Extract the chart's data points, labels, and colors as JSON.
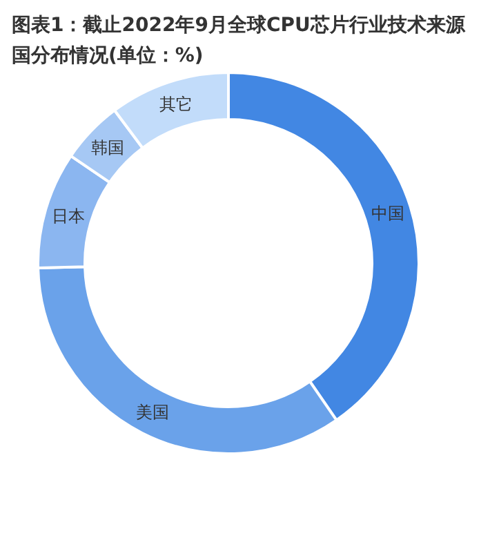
{
  "chart_data": {
    "type": "donut",
    "title": "图表1：截止2022年9月全球CPU芯片行业技术来源国分布情况(单位：%)",
    "categories": [
      "中国",
      "美国",
      "日本",
      "韩国",
      "其它"
    ],
    "values": [
      40.4,
      34.2,
      9.9,
      5.3,
      10.2
    ],
    "colors": [
      "#4287e3",
      "#6aa2ea",
      "#8bb6f0",
      "#a6c8f4",
      "#c2dcfa"
    ]
  }
}
